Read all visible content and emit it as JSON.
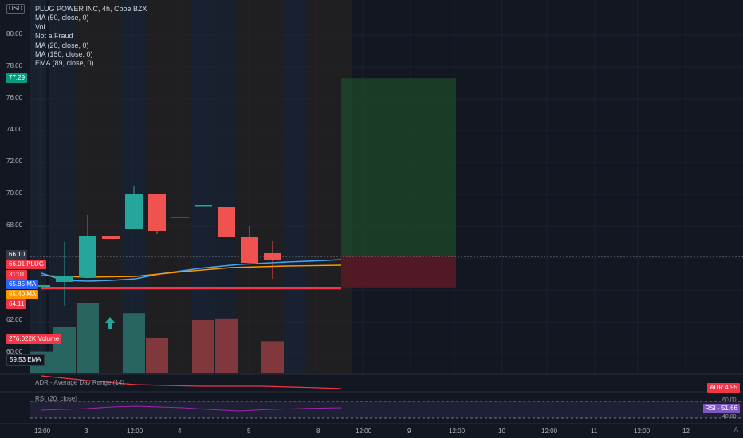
{
  "header": {
    "currency": "USD",
    "legend": [
      "PLUG POWER INC, 4h, Cboe BZX",
      "MA (50, close, 0)",
      "Vol",
      "Not a Fraud",
      "MA (20, close, 0)",
      "MA (150, close, 0)",
      "EMA (89, close, 0)"
    ]
  },
  "price_axis": [
    "80.00",
    "78.00",
    "76.00",
    "74.00",
    "72.00",
    "70.00",
    "68.00",
    "62.00",
    "60.00"
  ],
  "price_labels": [
    {
      "text": "77.29",
      "color": "#089981"
    },
    {
      "text": "66.10",
      "color": "#363a45"
    },
    {
      "text": "66.01",
      "color": "#f23645",
      "suffix": "PLUG"
    },
    {
      "text": "31:01",
      "color": "#f23645"
    },
    {
      "text": "65.85",
      "color": "#2962ff",
      "suffix": "MA"
    },
    {
      "text": "65.40",
      "color": "#ff9800",
      "suffix": "MA"
    },
    {
      "text": "64.11",
      "color": "#f23645"
    },
    {
      "text": "276.022K",
      "color": "#f23645",
      "suffix": "Volume"
    },
    {
      "text": "59.53",
      "color": "#131722",
      "suffix": "EMA"
    }
  ],
  "time_axis": [
    "12:00",
    "3",
    "12:00",
    "4",
    "5",
    "8",
    "12:00",
    "9",
    "12:00",
    "10",
    "12:00",
    "11",
    "12:00",
    "12"
  ],
  "indicators": {
    "adr_label": "ADR - Average Day Range (14)",
    "adr_value": "ADR 4.95",
    "rsi_label": "RSI (20, close)",
    "rsi_value": "RSI · 51.66",
    "rsi_levels": [
      "60.00",
      "40.00"
    ]
  },
  "corner": "A",
  "colors": {
    "up": "#26a69a",
    "down": "#ef5350",
    "bg": "#131722"
  },
  "chart_data": {
    "type": "candlestick",
    "candles": [
      {
        "o": 64.2,
        "h": 64.3,
        "l": 64.2,
        "c": 64.3
      },
      {
        "o": 64.5,
        "h": 67.0,
        "l": 63.0,
        "c": 64.9
      },
      {
        "o": 64.8,
        "h": 68.7,
        "l": 64.8,
        "c": 67.4
      },
      {
        "o": 67.4,
        "h": 67.4,
        "l": 67.2,
        "c": 67.2
      },
      {
        "o": 67.8,
        "h": 70.5,
        "l": 67.8,
        "c": 70.0
      },
      {
        "o": 70.0,
        "h": 70.0,
        "l": 67.5,
        "c": 67.7
      },
      {
        "o": 68.6,
        "h": 68.6,
        "l": 68.6,
        "c": 68.6
      },
      {
        "o": 69.3,
        "h": 69.3,
        "l": 69.3,
        "c": 69.3
      },
      {
        "o": 69.2,
        "h": 69.2,
        "l": 67.3,
        "c": 67.3
      },
      {
        "o": 67.3,
        "h": 68.0,
        "l": 65.6,
        "c": 65.7
      },
      {
        "o": 66.3,
        "h": 67.1,
        "l": 64.7,
        "c": 65.9
      }
    ],
    "volume": [
      {
        "v": 60,
        "dir": "up"
      },
      {
        "v": 130,
        "dir": "up"
      },
      {
        "v": 200,
        "dir": "up"
      },
      {
        "v": 0,
        "dir": "up"
      },
      {
        "v": 170,
        "dir": "up"
      },
      {
        "v": 100,
        "dir": "down"
      },
      {
        "v": 0,
        "dir": "up"
      },
      {
        "v": 150,
        "dir": "down"
      },
      {
        "v": 155,
        "dir": "down"
      },
      {
        "v": 0,
        "dir": "down"
      },
      {
        "v": 90,
        "dir": "down"
      }
    ],
    "position": {
      "entry": 66.1,
      "target": 77.29,
      "stop": 64.11
    }
  }
}
